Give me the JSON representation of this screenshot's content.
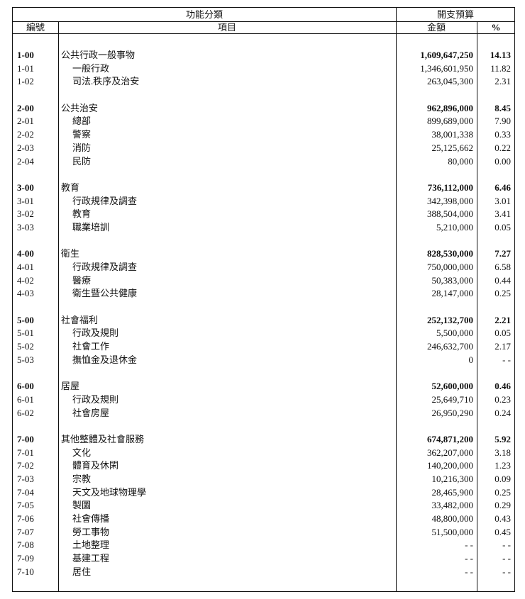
{
  "header": {
    "functional_classification": "功能分類",
    "budget": "開支預算",
    "code": "編號",
    "item": "項目",
    "amount": "金額",
    "percent": "%"
  },
  "groups": [
    {
      "rows": [
        {
          "code": "1-00",
          "item": "公共行政一般事物",
          "amount": "1,609,647,250",
          "pct": "14.13"
        },
        {
          "code": "1-01",
          "item": "一般行政",
          "amount": "1,346,601,950",
          "pct": "11.82"
        },
        {
          "code": "1-02",
          "item": "司法.秩序及治安",
          "amount": "263,045,300",
          "pct": "2.31"
        }
      ]
    },
    {
      "rows": [
        {
          "code": "2-00",
          "item": "公共治安",
          "amount": "962,896,000",
          "pct": "8.45"
        },
        {
          "code": "2-01",
          "item": "總部",
          "amount": "899,689,000",
          "pct": "7.90"
        },
        {
          "code": "2-02",
          "item": "警察",
          "amount": "38,001,338",
          "pct": "0.33"
        },
        {
          "code": "2-03",
          "item": "消防",
          "amount": "25,125,662",
          "pct": "0.22"
        },
        {
          "code": "2-04",
          "item": "民防",
          "amount": "80,000",
          "pct": "0.00"
        }
      ]
    },
    {
      "rows": [
        {
          "code": "3-00",
          "item": "教育",
          "amount": "736,112,000",
          "pct": "6.46"
        },
        {
          "code": "3-01",
          "item": "行政規律及調查",
          "amount": "342,398,000",
          "pct": "3.01"
        },
        {
          "code": "3-02",
          "item": "教育",
          "amount": "388,504,000",
          "pct": "3.41"
        },
        {
          "code": "3-03",
          "item": "職業培訓",
          "amount": "5,210,000",
          "pct": "0.05"
        }
      ]
    },
    {
      "rows": [
        {
          "code": "4-00",
          "item": "衛生",
          "amount": "828,530,000",
          "pct": "7.27"
        },
        {
          "code": "4-01",
          "item": "行政規律及調查",
          "amount": "750,000,000",
          "pct": "6.58"
        },
        {
          "code": "4-02",
          "item": "醫療",
          "amount": "50,383,000",
          "pct": "0.44"
        },
        {
          "code": "4-03",
          "item": "衛生暨公共健康",
          "amount": "28,147,000",
          "pct": "0.25"
        }
      ]
    },
    {
      "rows": [
        {
          "code": "5-00",
          "item": "社會福利",
          "amount": "252,132,700",
          "pct": "2.21"
        },
        {
          "code": "5-01",
          "item": "行政及規則",
          "amount": "5,500,000",
          "pct": "0.05"
        },
        {
          "code": "5-02",
          "item": "社會工作",
          "amount": "246,632,700",
          "pct": "2.17"
        },
        {
          "code": "5-03",
          "item": "撫恤金及退休金",
          "amount": "0",
          "pct": "- -"
        }
      ]
    },
    {
      "rows": [
        {
          "code": "6-00",
          "item": "居屋",
          "amount": "52,600,000",
          "pct": "0.46"
        },
        {
          "code": "6-01",
          "item": "行政及規則",
          "amount": "25,649,710",
          "pct": "0.23"
        },
        {
          "code": "6-02",
          "item": "社會房屋",
          "amount": "26,950,290",
          "pct": "0.24"
        }
      ]
    },
    {
      "rows": [
        {
          "code": "7-00",
          "item": "其他整體及社會服務",
          "amount": "674,871,200",
          "pct": "5.92"
        },
        {
          "code": "7-01",
          "item": "文化",
          "amount": "362,207,000",
          "pct": "3.18"
        },
        {
          "code": "7-02",
          "item": "體育及休閑",
          "amount": "140,200,000",
          "pct": "1.23"
        },
        {
          "code": "7-03",
          "item": "宗教",
          "amount": "10,216,300",
          "pct": "0.09"
        },
        {
          "code": "7-04",
          "item": "天文及地球物理學",
          "amount": "28,465,900",
          "pct": "0.25"
        },
        {
          "code": "7-05",
          "item": "製圖",
          "amount": "33,482,000",
          "pct": "0.29"
        },
        {
          "code": "7-06",
          "item": "社會傳播",
          "amount": "48,800,000",
          "pct": "0.43"
        },
        {
          "code": "7-07",
          "item": "勞工事物",
          "amount": "51,500,000",
          "pct": "0.45"
        },
        {
          "code": "7-08",
          "item": "土地整理",
          "amount": "- -",
          "pct": "- -"
        },
        {
          "code": "7-09",
          "item": "基建工程",
          "amount": "- -",
          "pct": "- -"
        },
        {
          "code": "7-10",
          "item": "居住",
          "amount": "- -",
          "pct": "- -"
        }
      ]
    }
  ]
}
